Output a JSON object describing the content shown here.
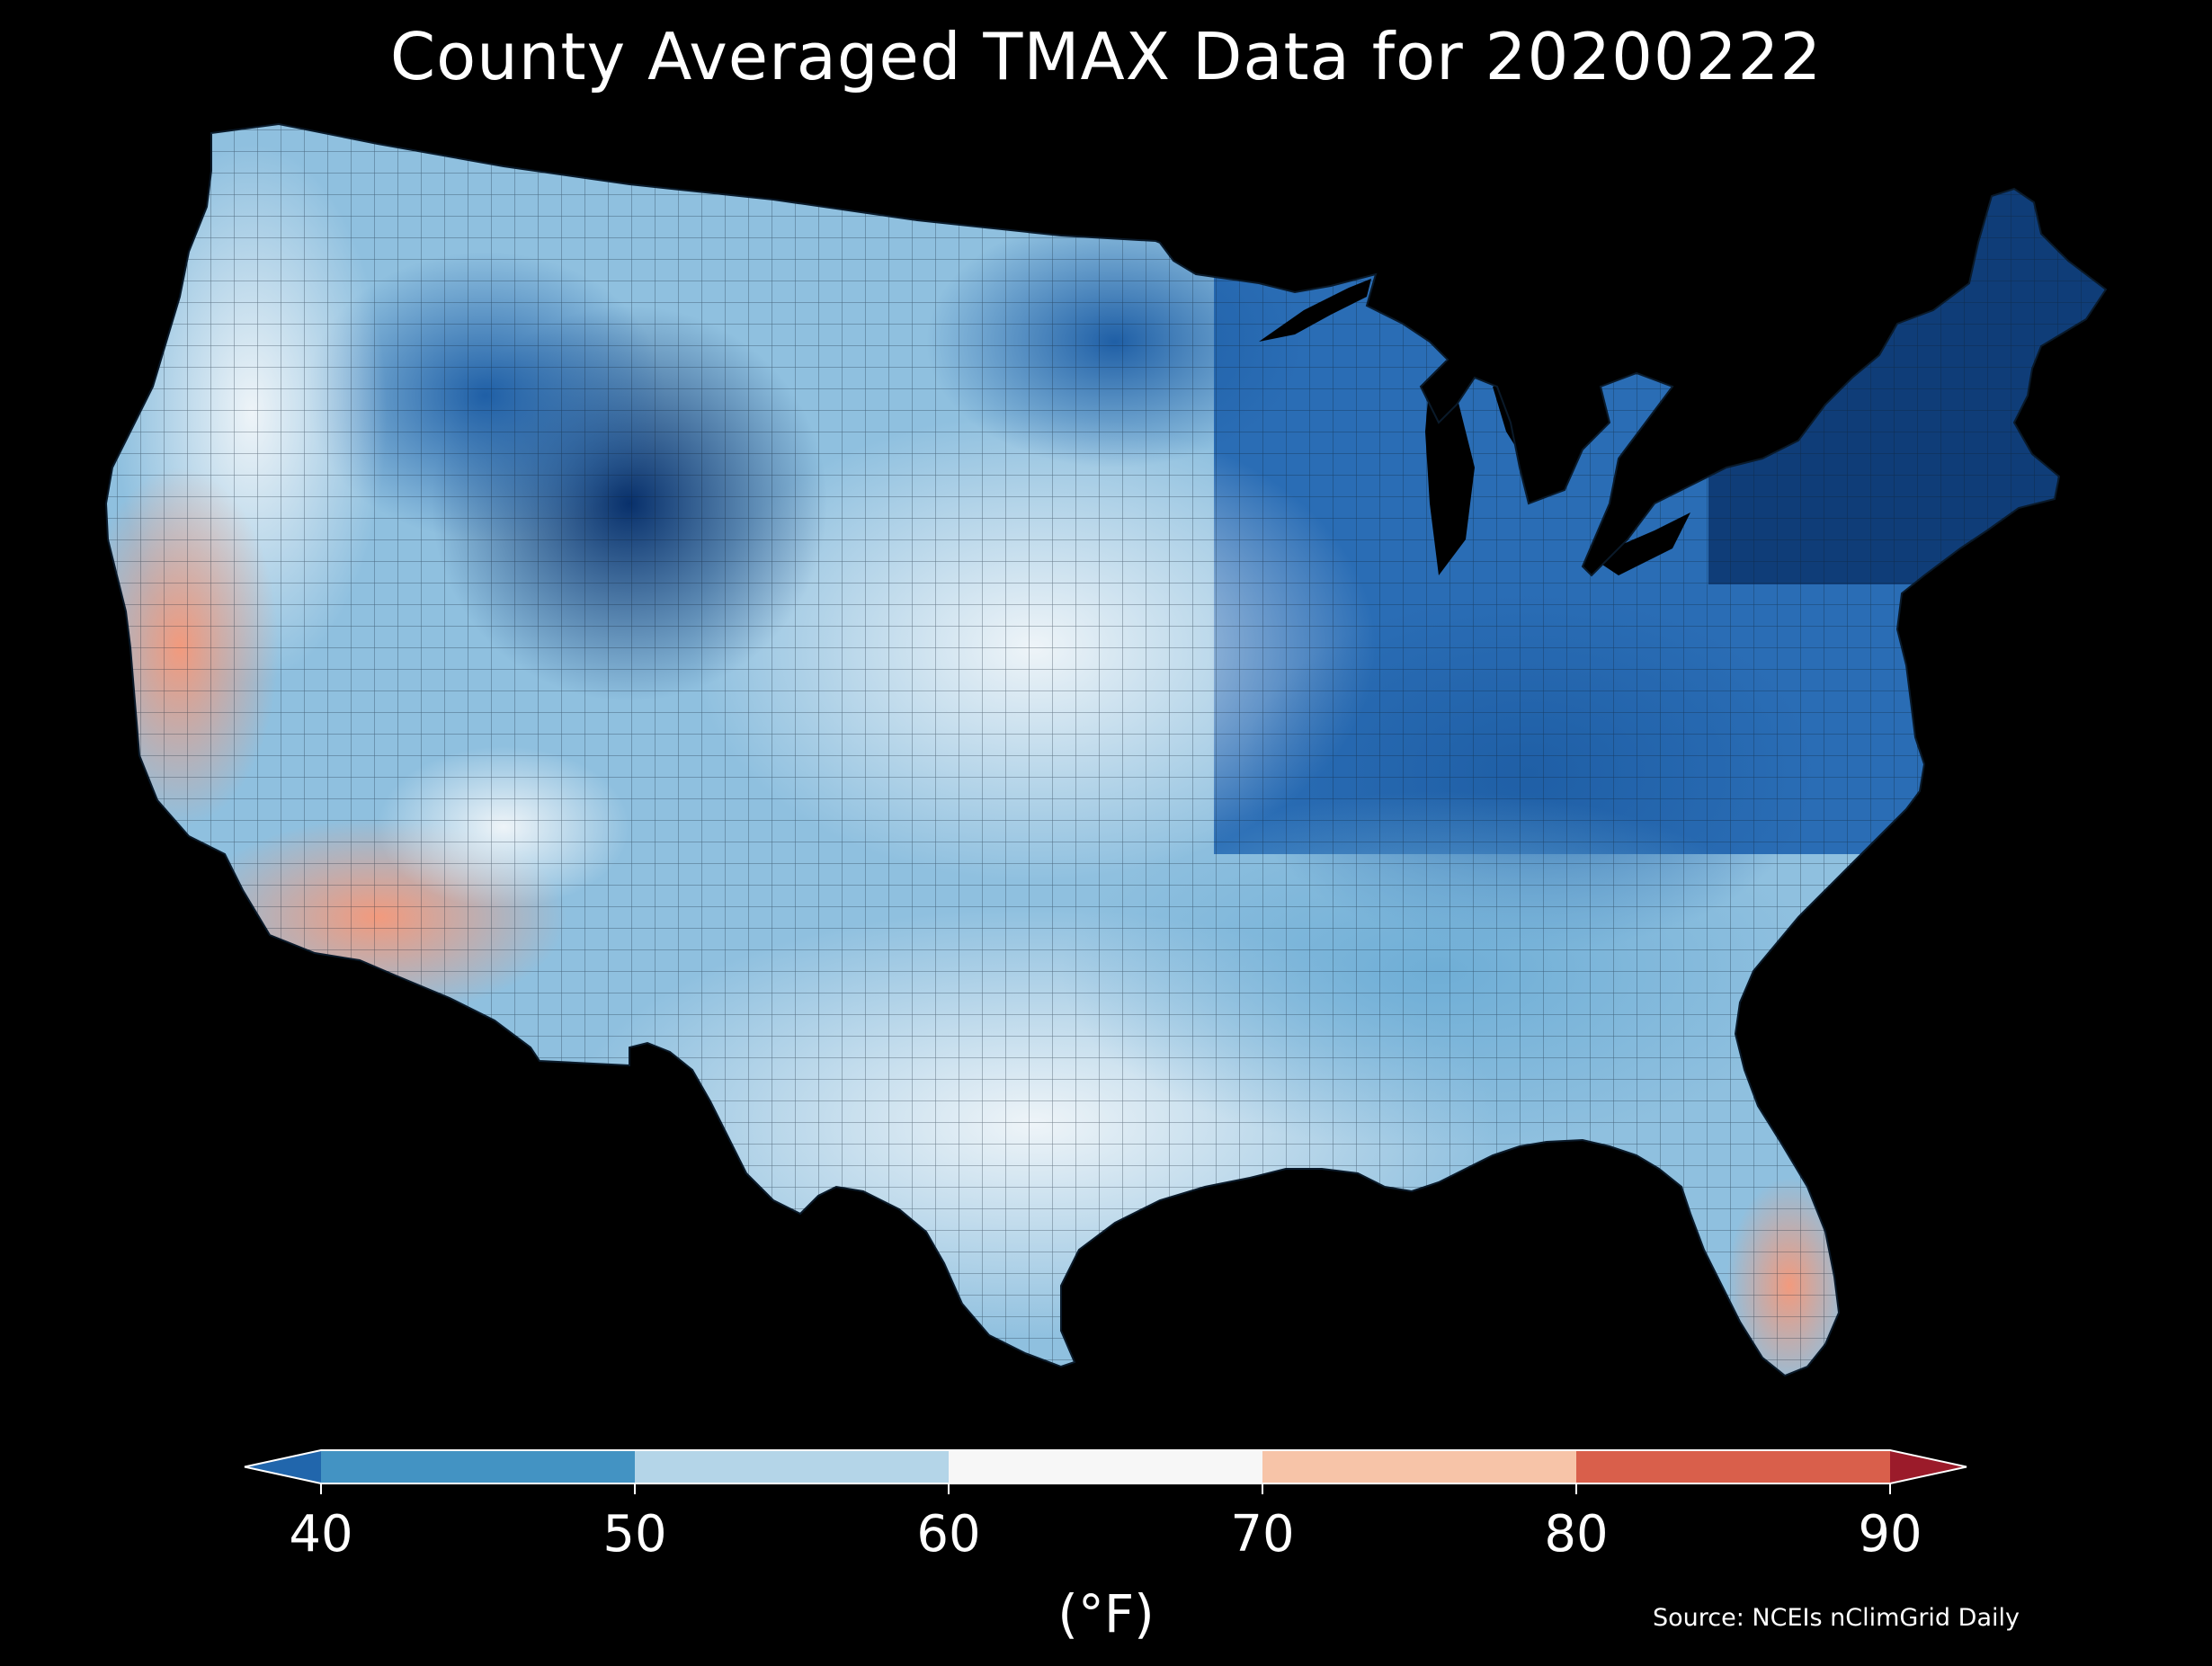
{
  "title": "County Averaged TMAX Data for 20200222",
  "colorbar": {
    "unit_label": "(°F)",
    "min": 40,
    "max": 90,
    "extend": "both",
    "bins": [
      {
        "from": null,
        "to": 40,
        "color": "#2166ac"
      },
      {
        "from": 40,
        "to": 50,
        "color": "#4393c3"
      },
      {
        "from": 50,
        "to": 60,
        "color": "#b4d5e8"
      },
      {
        "from": 60,
        "to": 70,
        "color": "#f7f7f7"
      },
      {
        "from": 70,
        "to": 80,
        "color": "#f7c4a8"
      },
      {
        "from": 80,
        "to": 90,
        "color": "#d95f4b"
      },
      {
        "from": 90,
        "to": null,
        "color": "#9b1b2a"
      }
    ],
    "ticks": [
      "40",
      "50",
      "60",
      "70",
      "80",
      "90"
    ]
  },
  "source": "Source: NCEIs nClimGrid Daily",
  "map": {
    "region": "Contiguous United States",
    "background_color": "#000000",
    "border_color": "#1a2a3a",
    "regional_tmax_f": [
      {
        "region": "New England / Maine",
        "color": "#08306b"
      },
      {
        "region": "Northeast / Mid-Atlantic",
        "color": "#1f5fa6"
      },
      {
        "region": "Great Lakes / Upper Midwest",
        "color": "#2a6db5"
      },
      {
        "region": "Northern Minnesota",
        "color": "#1c4f8f"
      },
      {
        "region": "Wyoming interior",
        "color": "#0b3a72"
      },
      {
        "region": "Montana / Idaho mountains",
        "color": "#2d74b8"
      },
      {
        "region": "Northern Plains",
        "color": "#9ecae1"
      },
      {
        "region": "Central Plains",
        "color": "#d6e8f3"
      },
      {
        "region": "Ohio / Tennessee Valley",
        "color": "#3b7fc0"
      },
      {
        "region": "Southeast",
        "color": "#9cc6e2"
      },
      {
        "region": "Texas",
        "color": "#c9e0ef"
      },
      {
        "region": "Pacific Northwest coast",
        "color": "#c6dcec"
      },
      {
        "region": "Nevada / Utah",
        "color": "#c2dbec"
      },
      {
        "region": "Northern California",
        "color": "#f6d9c8"
      },
      {
        "region": "Southern California",
        "color": "#f7c9b0"
      },
      {
        "region": "Southern Arizona",
        "color": "#f2a486"
      },
      {
        "region": "South Florida",
        "color": "#f08f72"
      }
    ]
  }
}
